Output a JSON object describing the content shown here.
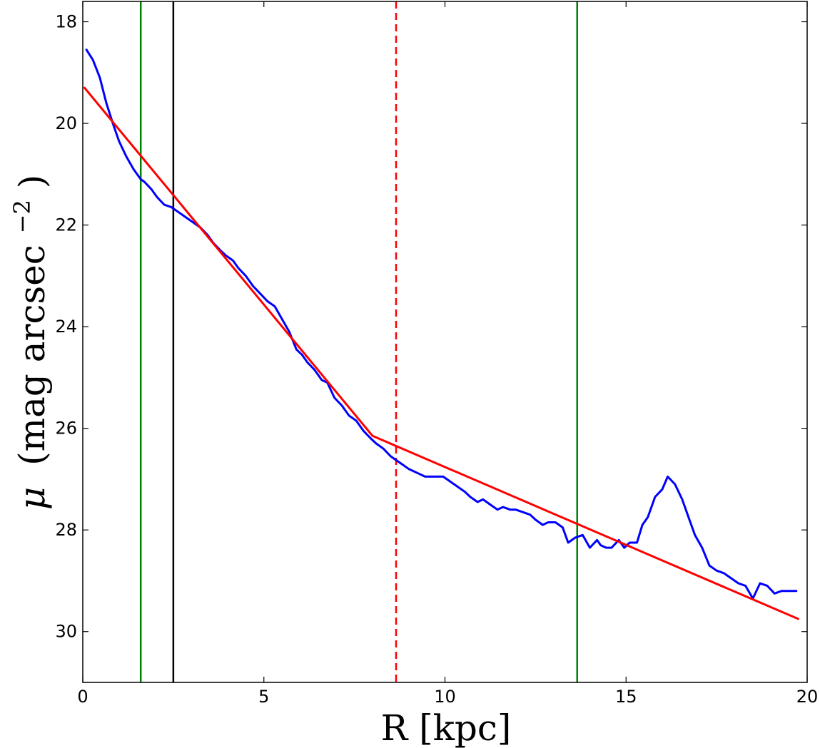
{
  "chart_data": {
    "type": "line",
    "xlabel": "R [kpc]",
    "ylabel_parts": {
      "symbol": "μ",
      "open": "(mag arcsec",
      "exponent": "−2",
      "close": ")"
    },
    "xlim": [
      0,
      20
    ],
    "ylim": [
      31,
      17.6
    ],
    "y_inverted": true,
    "x_ticks": [
      0,
      5,
      10,
      15,
      20
    ],
    "y_ticks": [
      18,
      20,
      22,
      24,
      26,
      28,
      30
    ],
    "grid": false,
    "vertical_lines": [
      {
        "x": 1.6,
        "color": "#008000",
        "style": "solid"
      },
      {
        "x": 2.5,
        "color": "#000000",
        "style": "solid"
      },
      {
        "x": 8.65,
        "color": "#ff0000",
        "style": "dashed"
      },
      {
        "x": 13.65,
        "color": "#008000",
        "style": "solid"
      }
    ],
    "series": [
      {
        "role": "profile",
        "color": "#0000ff",
        "x": [
          0.1,
          0.28,
          0.47,
          0.65,
          0.83,
          1.0,
          1.2,
          1.4,
          1.6,
          1.7,
          1.9,
          2.05,
          2.25,
          2.45,
          2.65,
          2.85,
          3.05,
          3.25,
          3.45,
          3.6,
          3.8,
          3.95,
          4.15,
          4.3,
          4.5,
          4.7,
          4.9,
          5.1,
          5.3,
          5.5,
          5.7,
          5.9,
          6.05,
          6.2,
          6.4,
          6.6,
          6.75,
          6.95,
          7.15,
          7.35,
          7.55,
          7.75,
          7.95,
          8.1,
          8.3,
          8.5,
          8.7,
          8.8,
          9.0,
          9.15,
          9.3,
          9.45,
          9.6,
          9.8,
          9.95,
          10.15,
          10.35,
          10.55,
          10.7,
          10.9,
          11.05,
          11.25,
          11.45,
          11.6,
          11.8,
          11.95,
          12.15,
          12.35,
          12.5,
          12.7,
          12.85,
          13.05,
          13.25,
          13.4,
          13.6,
          13.8,
          14.0,
          14.2,
          14.3,
          14.45,
          14.6,
          14.8,
          14.95,
          15.1,
          15.3,
          15.45,
          15.6,
          15.8,
          16.0,
          16.15,
          16.35,
          16.55,
          16.7,
          16.9,
          17.1,
          17.3,
          17.5,
          17.7,
          17.9,
          18.1,
          18.3,
          18.5,
          18.7,
          18.9,
          19.1,
          19.3,
          19.5,
          19.7
        ],
        "y": [
          18.55,
          18.75,
          19.1,
          19.6,
          20.0,
          20.35,
          20.65,
          20.9,
          21.1,
          21.15,
          21.3,
          21.45,
          21.6,
          21.65,
          21.75,
          21.85,
          21.95,
          22.05,
          22.2,
          22.35,
          22.5,
          22.6,
          22.7,
          22.85,
          23.0,
          23.2,
          23.35,
          23.5,
          23.6,
          23.85,
          24.1,
          24.45,
          24.55,
          24.7,
          24.85,
          25.05,
          25.1,
          25.4,
          25.55,
          25.75,
          25.85,
          26.05,
          26.2,
          26.3,
          26.4,
          26.55,
          26.65,
          26.7,
          26.8,
          26.85,
          26.9,
          26.95,
          26.95,
          26.95,
          26.95,
          27.05,
          27.15,
          27.25,
          27.35,
          27.45,
          27.4,
          27.5,
          27.6,
          27.55,
          27.6,
          27.6,
          27.65,
          27.7,
          27.8,
          27.9,
          27.85,
          27.85,
          27.95,
          28.25,
          28.15,
          28.1,
          28.35,
          28.2,
          28.3,
          28.35,
          28.35,
          28.2,
          28.35,
          28.25,
          28.25,
          27.9,
          27.75,
          27.35,
          27.2,
          26.95,
          27.1,
          27.4,
          27.7,
          28.1,
          28.35,
          28.7,
          28.8,
          28.85,
          28.95,
          29.05,
          29.1,
          29.35,
          29.05,
          29.1,
          29.25,
          29.2,
          29.2,
          29.2
        ]
      },
      {
        "role": "inner-fit",
        "color": "#ff0000",
        "x": [
          0.05,
          8.0
        ],
        "y": [
          19.3,
          26.15
        ]
      },
      {
        "role": "outer-fit",
        "color": "#ff0000",
        "x": [
          8.0,
          19.75
        ],
        "y": [
          26.15,
          29.75
        ]
      }
    ]
  }
}
